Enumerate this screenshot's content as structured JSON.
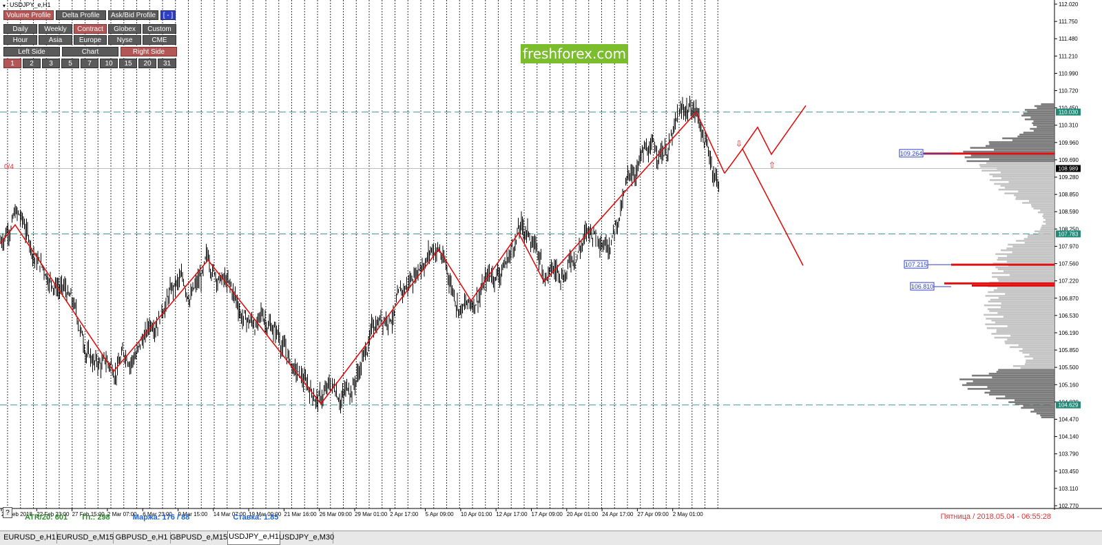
{
  "window": {
    "title": "USDJPY_e,H1"
  },
  "brand": "freshforex.com",
  "toolbar": {
    "row1": [
      {
        "label": "Volume Profile",
        "active": true
      },
      {
        "label": "Delta Profile",
        "active": false
      },
      {
        "label": "Ask/Bid Profile",
        "active": false
      },
      {
        "label": "[ - ]",
        "active": false,
        "blue": true
      }
    ],
    "row2": [
      {
        "label": "Daily",
        "active": false
      },
      {
        "label": "Weekly",
        "active": false
      },
      {
        "label": "Contract",
        "active": true
      },
      {
        "label": "Globex",
        "active": false
      },
      {
        "label": "Custom",
        "active": false
      }
    ],
    "row3": [
      {
        "label": "Hour",
        "active": false
      },
      {
        "label": "Asia",
        "active": false
      },
      {
        "label": "Europe",
        "active": false
      },
      {
        "label": "Nyse",
        "active": false
      },
      {
        "label": "CME",
        "active": false
      }
    ],
    "row4": [
      {
        "label": "Left Side",
        "active": false
      },
      {
        "label": "Chart",
        "active": false
      },
      {
        "label": "Right Side",
        "active": true
      }
    ],
    "row5": [
      {
        "label": "1",
        "active": true
      },
      {
        "label": "2",
        "active": false
      },
      {
        "label": "3",
        "active": false
      },
      {
        "label": "5",
        "active": false
      },
      {
        "label": "7",
        "active": false
      },
      {
        "label": "10",
        "active": false
      },
      {
        "label": "15",
        "active": false
      },
      {
        "label": "20",
        "active": false
      },
      {
        "label": "31",
        "active": false
      }
    ]
  },
  "price_axis": {
    "labels": [
      "112.020",
      "111.750",
      "111.480",
      "111.210",
      "110.990",
      "110.720",
      "110.450",
      "110.310",
      "109.960",
      "109.690",
      "109.280",
      "108.850",
      "108.590",
      "108.250",
      "107.970",
      "107.560",
      "107.220",
      "106.870",
      "106.530",
      "106.190",
      "105.850",
      "105.500",
      "105.160",
      "104.820",
      "104.470",
      "104.140",
      "103.790",
      "103.450",
      "103.110",
      "102.770"
    ],
    "range": [
      102.77,
      112.02
    ],
    "highlights": [
      {
        "value": 110.03,
        "label": "110.030",
        "color": "#1f8a78"
      },
      {
        "value": 108.989,
        "label": "108.989",
        "color": "#000000"
      },
      {
        "value": 107.783,
        "label": "107.783",
        "color": "#1f8a78"
      },
      {
        "value": 104.629,
        "label": "104.629",
        "color": "#1f8a78"
      }
    ],
    "profile_labels": [
      {
        "value": 109.264,
        "label": "109.264"
      },
      {
        "value": 107.215,
        "label": "107.215"
      },
      {
        "value": 106.81,
        "label": "106.810"
      }
    ]
  },
  "time_axis": {
    "labels": [
      "20 Feb 2018",
      "22 Feb 23:00",
      "27 Feb 15:00",
      "2 Mar 07:00",
      "6 Mar 23:00",
      "9 Mar 15:00",
      "14 Mar 07:00",
      "19 Mar 00:00",
      "21 Mar 16:00",
      "26 Mar 09:00",
      "29 Mar 01:00",
      "2 Apr 17:00",
      "5 Apr 09:00",
      "10 Apr 01:00",
      "12 Apr 17:00",
      "17 Apr 09:00",
      "20 Apr 01:00",
      "24 Apr 17:00",
      "27 Apr 09:00",
      "2 May 01:00"
    ]
  },
  "chart_data": {
    "type": "line",
    "symbol": "USDJPY_e",
    "timeframe": "H1",
    "levels": [
      110.03,
      107.783,
      104.629
    ],
    "current_price": 108.989,
    "zigzag": [
      107.6,
      107.95,
      105.25,
      107.3,
      104.65,
      107.5,
      106.55,
      107.8,
      106.9,
      110.03,
      108.9
    ],
    "projection_up": [
      108.9,
      109.35,
      109.75,
      109.25,
      110.15
    ],
    "projection_down": [
      109.35,
      107.2
    ]
  },
  "status": {
    "atr": "ATR/20: 601",
    "points": "Пт.: 298",
    "margin": "Маржа: 176 / 88",
    "rate": "Ставка: 1.85",
    "help": "?",
    "date": "Пятница  /  2018.05.04  -  06:55:28",
    "zero": "0/4"
  },
  "tabs": [
    "EURUSD_e,H1",
    "EURUSD_e,M15",
    "GBPUSD_e,H1",
    "GBPUSD_e,M15",
    "USDJPY_e,H1",
    "USDJPY_e,M30"
  ],
  "active_tab": "USDJPY_e,H1"
}
